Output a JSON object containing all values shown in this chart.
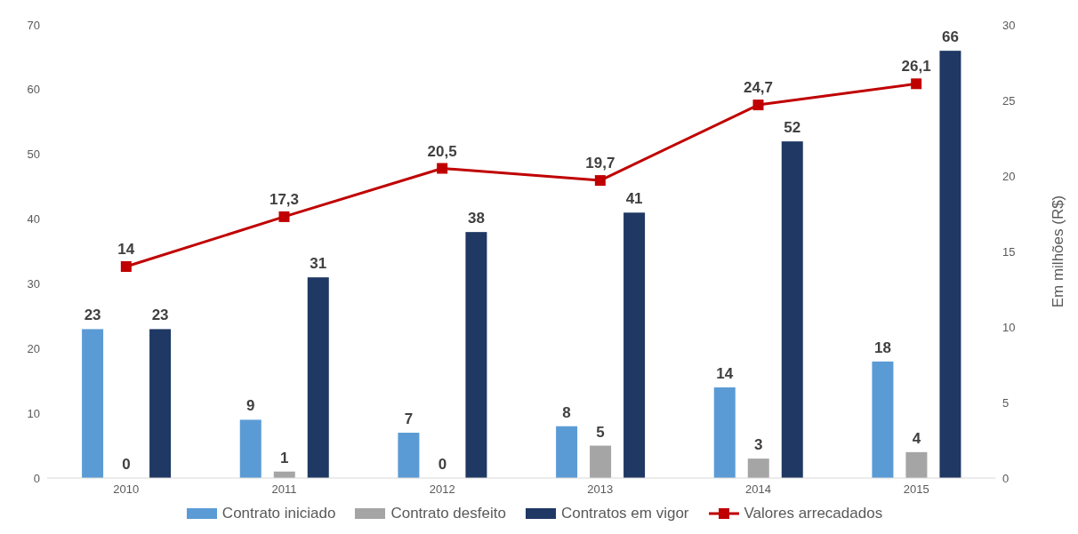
{
  "chart_data": {
    "type": "bar",
    "categories": [
      "2010",
      "2011",
      "2012",
      "2013",
      "2014",
      "2015"
    ],
    "series": [
      {
        "name": "Contrato iniciado",
        "color": "#5b9bd5",
        "values": [
          23,
          9,
          7,
          8,
          14,
          18
        ],
        "value_labels": [
          "23",
          "9",
          "7",
          "8",
          "14",
          "18"
        ]
      },
      {
        "name": "Contrato desfeito",
        "color": "#a5a5a5",
        "values": [
          0,
          1,
          0,
          5,
          3,
          4
        ],
        "value_labels": [
          "0",
          "1",
          "0",
          "5",
          "3",
          "4"
        ]
      },
      {
        "name": "Contratos em vigor",
        "color": "#1f3864",
        "values": [
          23,
          31,
          38,
          41,
          52,
          66
        ],
        "value_labels": [
          "23",
          "31",
          "38",
          "41",
          "52",
          "66"
        ]
      },
      {
        "name": "Valores arrecadados",
        "type": "line",
        "axis": "y2",
        "color": "#c00000",
        "marker": "square",
        "values": [
          14,
          17.3,
          20.5,
          19.7,
          24.7,
          26.1
        ],
        "value_labels": [
          "14",
          "17,3",
          "20,5",
          "19,7",
          "24,7",
          "26,1"
        ]
      }
    ],
    "ylim": [
      0,
      70
    ],
    "yticks": [
      0,
      10,
      20,
      30,
      40,
      50,
      60,
      70
    ],
    "y2lim": [
      0,
      30
    ],
    "y2ticks": [
      0,
      5,
      10,
      15,
      20,
      25,
      30
    ],
    "y2label": "Em milhões (R$)",
    "legend": "bottom",
    "grid": false
  }
}
